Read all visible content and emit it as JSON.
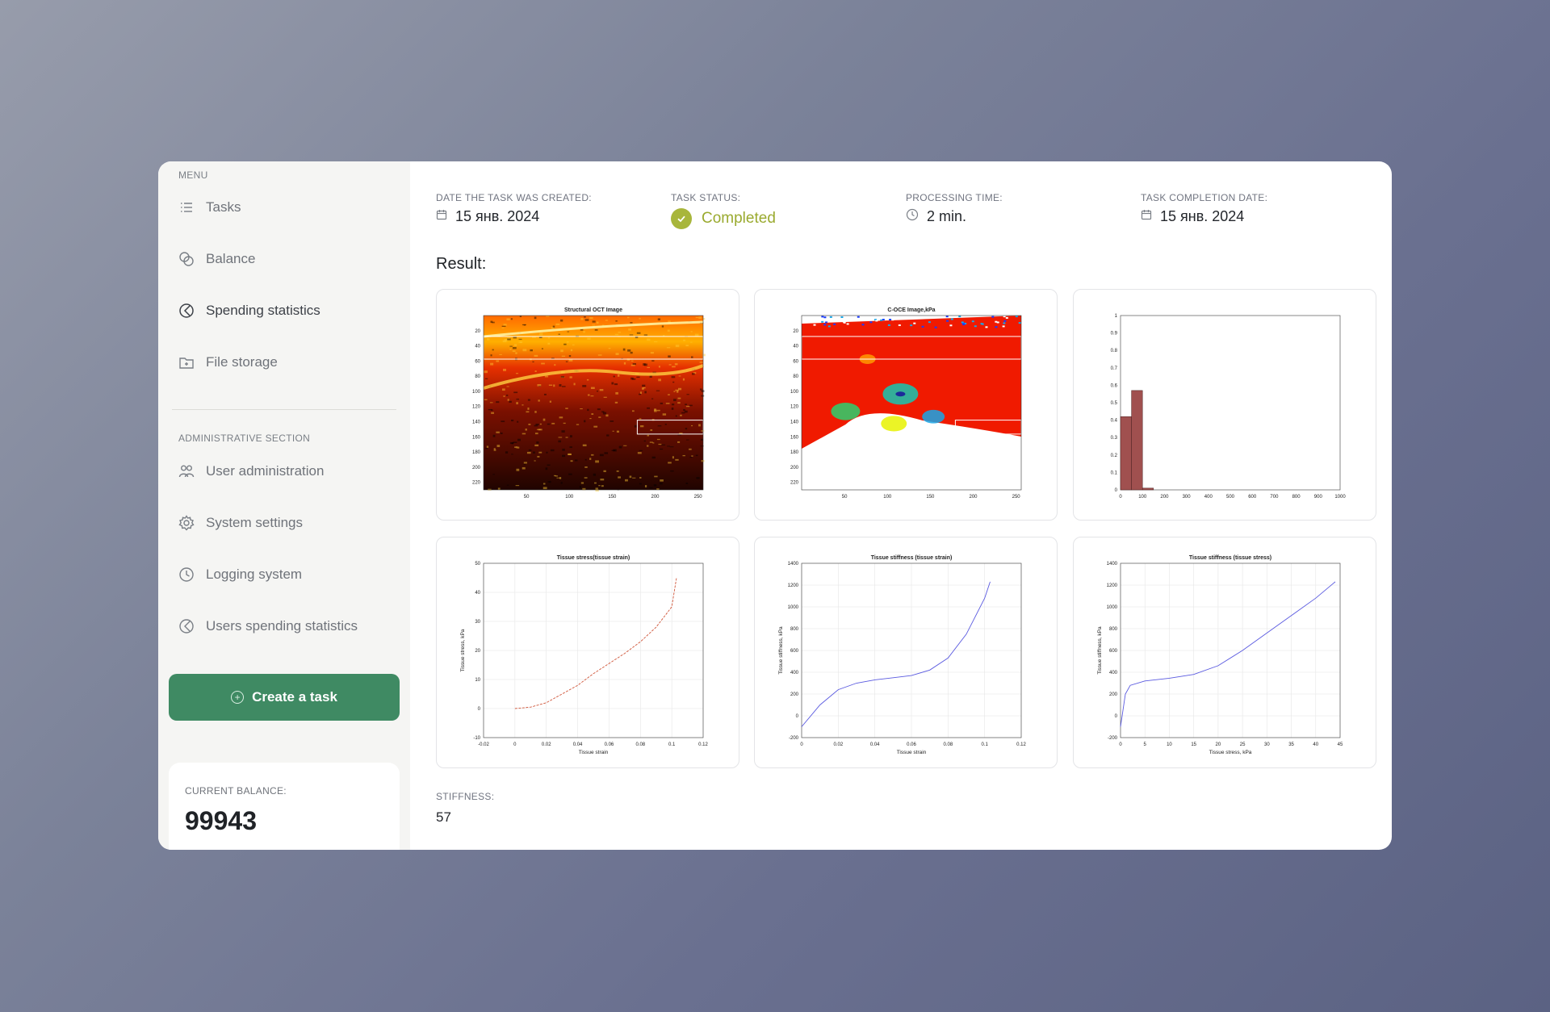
{
  "sidebar": {
    "menu_title": "MENU",
    "items": [
      {
        "label": "Tasks",
        "icon": "list-icon"
      },
      {
        "label": "Balance",
        "icon": "coins-icon"
      },
      {
        "label": "Spending statistics",
        "icon": "pie-chart-icon",
        "active": true
      },
      {
        "label": "File storage",
        "icon": "folder-icon"
      }
    ],
    "admin_title": "ADMINISTRATIVE SECTION",
    "admin_items": [
      {
        "label": "User administration",
        "icon": "users-icon"
      },
      {
        "label": "System settings",
        "icon": "gear-icon"
      },
      {
        "label": "Logging system",
        "icon": "clock-icon"
      },
      {
        "label": "Users spending statistics",
        "icon": "pie-chart-icon"
      }
    ],
    "create_button": "Create a task",
    "balance": {
      "label": "CURRENT BALANCE:",
      "value": "99943"
    }
  },
  "task": {
    "created": {
      "label": "DATE THE TASK WAS CREATED:",
      "value": "15 янв. 2024"
    },
    "status": {
      "label": "TASK STATUS:",
      "value": "Completed",
      "color": "#a8b63b"
    },
    "processing": {
      "label": "PROCESSING TIME:",
      "value": "2 min."
    },
    "completed": {
      "label": "TASK COMPLETION DATE:",
      "value": "15 янв. 2024"
    }
  },
  "result_title": "Result:",
  "stiffness": {
    "label": "STIFFNESS:",
    "value": "57"
  },
  "colors": {
    "accent": "#3f8a63",
    "status_ok": "#a8b63b",
    "bar": "#a0504f"
  },
  "chart_data": [
    {
      "type": "heatmap",
      "title": "Structural OCT Image",
      "x_ticks": [
        50,
        100,
        150,
        200,
        250
      ],
      "y_ticks": [
        20,
        40,
        60,
        80,
        100,
        120,
        140,
        160,
        180,
        200,
        220
      ]
    },
    {
      "type": "heatmap",
      "title": "C-OCE Image,kPa",
      "x_ticks": [
        50,
        100,
        150,
        200,
        250
      ],
      "y_ticks": [
        20,
        40,
        60,
        80,
        100,
        120,
        140,
        160,
        180,
        200,
        220
      ]
    },
    {
      "type": "bar",
      "title": "",
      "categories": [
        25,
        75,
        125
      ],
      "values": [
        0.42,
        0.57,
        0.01
      ],
      "xlim": [
        0,
        1000
      ],
      "ylim": [
        0,
        1
      ],
      "x_ticks": [
        0,
        100,
        200,
        300,
        400,
        500,
        600,
        700,
        800,
        900,
        1000
      ],
      "y_ticks": [
        0,
        0.1,
        0.2,
        0.3,
        0.4,
        0.5,
        0.6,
        0.7,
        0.8,
        0.9,
        1
      ]
    },
    {
      "type": "line",
      "title": "Tissue stress(tissue strain)",
      "xlabel": "Tissue strain",
      "ylabel": "Tissue stress, kPa",
      "xlim": [
        -0.02,
        0.12
      ],
      "ylim": [
        -10,
        50
      ],
      "x_ticks": [
        -0.02,
        0,
        0.02,
        0.04,
        0.06,
        0.08,
        0.1,
        0.12
      ],
      "y_ticks": [
        -10,
        0,
        10,
        20,
        30,
        40,
        50
      ],
      "series": [
        {
          "color": "#d0563a",
          "x": [
            0,
            0.01,
            0.02,
            0.03,
            0.04,
            0.05,
            0.06,
            0.07,
            0.08,
            0.09,
            0.1,
            0.103
          ],
          "y": [
            0,
            0.5,
            2,
            5,
            8,
            12,
            15.5,
            19,
            23,
            28,
            35,
            45
          ]
        }
      ]
    },
    {
      "type": "line",
      "title": "Tissue stiffness (tissue strain)",
      "xlabel": "Tissue strain",
      "ylabel": "Tissue stiffness, kPa",
      "xlim": [
        0,
        0.12
      ],
      "ylim": [
        -200,
        1400
      ],
      "x_ticks": [
        0,
        0.02,
        0.04,
        0.06,
        0.08,
        0.1,
        0.12
      ],
      "y_ticks": [
        -200,
        0,
        200,
        400,
        600,
        800,
        1000,
        1200,
        1400
      ],
      "series": [
        {
          "color": "#5a5ae0",
          "x": [
            0,
            0.01,
            0.02,
            0.03,
            0.04,
            0.05,
            0.06,
            0.07,
            0.08,
            0.09,
            0.1,
            0.103
          ],
          "y": [
            -100,
            100,
            240,
            300,
            330,
            350,
            370,
            420,
            530,
            750,
            1080,
            1230
          ]
        }
      ]
    },
    {
      "type": "line",
      "title": "Tissue stiffness (tissue stress)",
      "xlabel": "Tissue stress, kPa",
      "ylabel": "Tissue stiffness, kPa",
      "xlim": [
        0,
        45
      ],
      "ylim": [
        -200,
        1400
      ],
      "x_ticks": [
        0,
        5,
        10,
        15,
        20,
        25,
        30,
        35,
        40,
        45
      ],
      "y_ticks": [
        -200,
        0,
        200,
        400,
        600,
        800,
        1000,
        1200,
        1400
      ],
      "series": [
        {
          "color": "#5a5ae0",
          "x": [
            0,
            0.5,
            1,
            2,
            5,
            10,
            15,
            20,
            25,
            30,
            35,
            40,
            44
          ],
          "y": [
            -100,
            50,
            200,
            280,
            320,
            345,
            380,
            460,
            600,
            760,
            920,
            1080,
            1230
          ]
        }
      ]
    }
  ]
}
